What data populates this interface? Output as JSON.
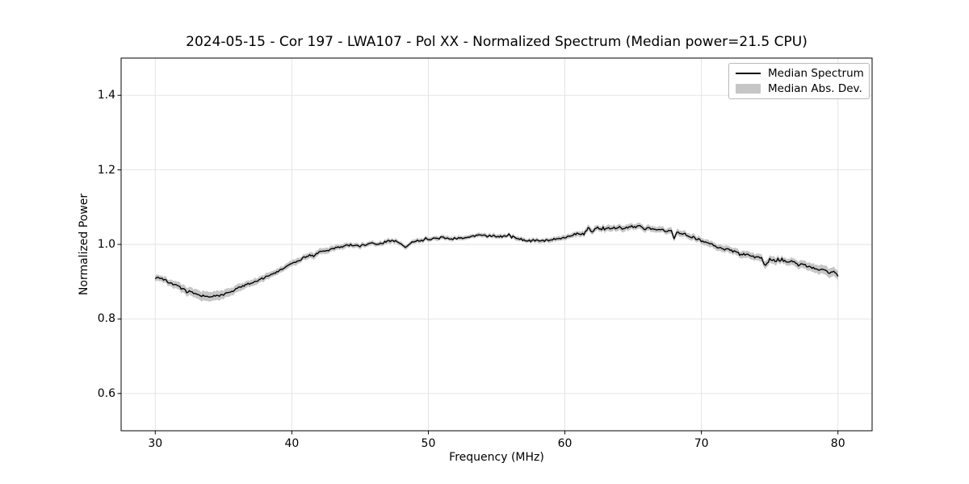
{
  "colors": {
    "background": "#ffffff",
    "grid": "#e2e2e2",
    "spine": "#000000",
    "line": "#000000",
    "band": "#c6c6c6",
    "text": "#000000",
    "legend_border": "#b9b9b9"
  },
  "chart_data": {
    "type": "line",
    "title": "2024-05-15 - Cor 197 - LWA107 - Pol XX - Normalized Spectrum (Median power=21.5 CPU)",
    "xlabel": "Frequency (MHz)",
    "ylabel": "Normalized Power",
    "xlim": [
      27.5,
      82.5
    ],
    "ylim": [
      0.5,
      1.5
    ],
    "xticks": [
      30,
      40,
      50,
      60,
      70,
      80
    ],
    "yticks": [
      0.6,
      0.8,
      1.0,
      1.2,
      1.4
    ],
    "grid": true,
    "legend": {
      "position": "upper right",
      "entries": [
        {
          "label": "Median Spectrum",
          "type": "line",
          "color": "#000000"
        },
        {
          "label": "Median Abs. Dev.",
          "type": "patch",
          "color": "#c6c6c6"
        }
      ]
    },
    "noise_amplitude": 0.0028,
    "series": [
      {
        "name": "Median Spectrum",
        "type": "line",
        "color": "#000000",
        "x": [
          30,
          30.5,
          31,
          31.5,
          32,
          32.5,
          33,
          33.5,
          34,
          34.5,
          35,
          35.5,
          36,
          36.5,
          37,
          37.5,
          38,
          38.5,
          39,
          39.5,
          40,
          40.5,
          41,
          41.3,
          41.6,
          42,
          42.5,
          43,
          43.5,
          44,
          44.5,
          45,
          45.5,
          46,
          46.3,
          46.8,
          47.2,
          47.6,
          48,
          48.3,
          48.7,
          49,
          49.5,
          50,
          50.5,
          51,
          51.5,
          52,
          52.5,
          53,
          53.5,
          54,
          54.3,
          54.7,
          55,
          55.5,
          56,
          56.5,
          57,
          57.5,
          58,
          58.5,
          59,
          59.5,
          60,
          60.5,
          61,
          61.4,
          61.7,
          62,
          62.3,
          62.6,
          63,
          63.5,
          64,
          64.5,
          65,
          65.5,
          65.8,
          66.2,
          66.6,
          67,
          67.4,
          67.8,
          68,
          68.2,
          68.6,
          69,
          69.5,
          70,
          70.5,
          71,
          71.5,
          72,
          72.5,
          73,
          73.5,
          74,
          74.4,
          74.7,
          75,
          75.4,
          75.8,
          76.2,
          76.6,
          77,
          77.5,
          78,
          78.5,
          79,
          79.4,
          79.7,
          80
        ],
        "y": [
          0.913,
          0.907,
          0.899,
          0.89,
          0.881,
          0.873,
          0.866,
          0.862,
          0.86,
          0.861,
          0.865,
          0.872,
          0.881,
          0.89,
          0.897,
          0.904,
          0.911,
          0.919,
          0.929,
          0.939,
          0.948,
          0.957,
          0.966,
          0.971,
          0.969,
          0.979,
          0.982,
          0.987,
          0.993,
          0.997,
          0.999,
          0.996,
          1.0,
          1.003,
          0.998,
          1.006,
          1.009,
          1.008,
          1.001,
          0.994,
          1.004,
          1.006,
          1.01,
          1.014,
          1.016,
          1.018,
          1.014,
          1.016,
          1.018,
          1.02,
          1.023,
          1.026,
          1.021,
          1.024,
          1.02,
          1.022,
          1.023,
          1.017,
          1.012,
          1.009,
          1.012,
          1.009,
          1.014,
          1.016,
          1.019,
          1.025,
          1.029,
          1.027,
          1.045,
          1.031,
          1.049,
          1.041,
          1.043,
          1.045,
          1.042,
          1.046,
          1.048,
          1.05,
          1.041,
          1.044,
          1.038,
          1.041,
          1.036,
          1.039,
          1.016,
          1.031,
          1.029,
          1.025,
          1.017,
          1.01,
          1.003,
          0.996,
          0.989,
          0.985,
          0.98,
          0.974,
          0.972,
          0.968,
          0.965,
          0.941,
          0.961,
          0.956,
          0.958,
          0.954,
          0.956,
          0.947,
          0.945,
          0.939,
          0.933,
          0.93,
          0.924,
          0.926,
          0.916
        ]
      },
      {
        "name": "Median Abs. Dev.",
        "type": "band",
        "color": "#c6c6c6",
        "x": [
          30,
          31,
          32,
          33,
          34,
          35,
          36,
          37,
          38,
          39,
          40,
          42,
          44,
          46,
          48,
          50,
          52,
          54,
          56,
          58,
          60,
          61,
          62,
          64,
          66,
          68,
          70,
          71,
          72,
          73,
          74,
          75,
          76,
          77,
          78,
          79,
          80
        ],
        "halfwidth": [
          0.008,
          0.009,
          0.011,
          0.012,
          0.013,
          0.012,
          0.01,
          0.009,
          0.009,
          0.008,
          0.008,
          0.008,
          0.007,
          0.006,
          0.006,
          0.006,
          0.0055,
          0.0055,
          0.0055,
          0.006,
          0.0065,
          0.007,
          0.008,
          0.008,
          0.008,
          0.008,
          0.008,
          0.0085,
          0.009,
          0.009,
          0.0095,
          0.01,
          0.009,
          0.01,
          0.011,
          0.012,
          0.012
        ]
      }
    ]
  }
}
